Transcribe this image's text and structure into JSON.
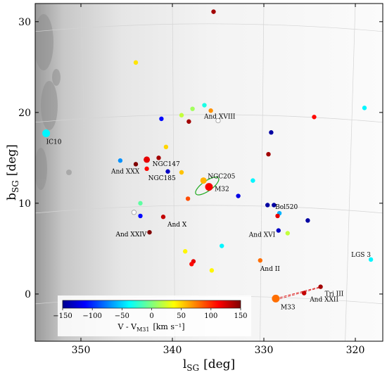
{
  "chart_data": {
    "type": "scatter",
    "xlabel": "l",
    "xlabel_sub": "SG",
    "xlabel_unit": "[deg]",
    "ylabel": "b",
    "ylabel_sub": "SG",
    "ylabel_unit": "[deg]",
    "xlim": [
      355.0,
      317.0
    ],
    "ylim": [
      -5.2,
      32.0
    ],
    "x_ticks": [
      350,
      340,
      330,
      320
    ],
    "y_ticks": [
      0,
      10,
      20,
      30
    ],
    "grid": true,
    "background": "sky-map greyscale (brighter toward left edge)",
    "colorbar": {
      "label": "V - V",
      "label_sub": "M31",
      "label_unit": "[km s⁻¹]",
      "ticks": [
        -150,
        -100,
        -50,
        0,
        50,
        100,
        150
      ],
      "tick_labels": [
        "−150",
        "−100",
        "−50",
        "0",
        "50",
        "100",
        "150"
      ],
      "range": [
        -150,
        150
      ],
      "colormap": "jet",
      "placement": "lower-left"
    },
    "points": [
      {
        "l": 353.8,
        "b": 17.7,
        "v": -40,
        "size": "large",
        "label": "IC10"
      },
      {
        "l": 335.5,
        "b": 31.1,
        "v": 140
      },
      {
        "l": 344.0,
        "b": 25.5,
        "v": 45
      },
      {
        "l": 336.5,
        "b": 20.8,
        "v": -30
      },
      {
        "l": 335.8,
        "b": 20.2,
        "v": 70
      },
      {
        "l": 337.8,
        "b": 20.4,
        "v": 10
      },
      {
        "l": 339.0,
        "b": 19.7,
        "v": 20
      },
      {
        "l": 341.2,
        "b": 19.3,
        "v": -110
      },
      {
        "l": 338.2,
        "b": 19.0,
        "v": 140
      },
      {
        "l": 335.0,
        "b": 19.1,
        "v": null,
        "label": "And XVIII"
      },
      {
        "l": 324.5,
        "b": 19.5,
        "v": 110
      },
      {
        "l": 319.0,
        "b": 20.5,
        "v": -40
      },
      {
        "l": 329.2,
        "b": 17.8,
        "v": -140
      },
      {
        "l": 329.5,
        "b": 15.4,
        "v": 140
      },
      {
        "l": 340.7,
        "b": 16.2,
        "v": 50
      },
      {
        "l": 341.5,
        "b": 15.0,
        "v": 140
      },
      {
        "l": 342.8,
        "b": 14.8,
        "v": 120,
        "size": "medium",
        "label": "NGC147"
      },
      {
        "l": 345.7,
        "b": 14.7,
        "v": -70
      },
      {
        "l": 344.0,
        "b": 14.3,
        "v": 150,
        "label": "And XXX"
      },
      {
        "l": 342.8,
        "b": 13.8,
        "v": 110,
        "label": "NGC185"
      },
      {
        "l": 340.5,
        "b": 13.5,
        "v": -130
      },
      {
        "l": 339.0,
        "b": 13.4,
        "v": 55
      },
      {
        "l": 336.6,
        "b": 12.5,
        "v": 60,
        "size": "medium",
        "label": "NGC205"
      },
      {
        "l": 336.0,
        "b": 11.8,
        "v": 115,
        "size": "large",
        "label": "M32"
      },
      {
        "l": 331.2,
        "b": 12.5,
        "v": -40
      },
      {
        "l": 332.8,
        "b": 10.8,
        "v": -120
      },
      {
        "l": 338.3,
        "b": 10.5,
        "v": 90
      },
      {
        "l": 343.5,
        "b": 10.0,
        "v": -10
      },
      {
        "l": 329.6,
        "b": 9.8,
        "v": -140
      },
      {
        "l": 328.9,
        "b": 9.8,
        "v": -140
      },
      {
        "l": 328.3,
        "b": 8.9,
        "v": -60,
        "label": "Bol520"
      },
      {
        "l": 328.5,
        "b": 8.6,
        "v": 120
      },
      {
        "l": 344.2,
        "b": 9.0,
        "v": null
      },
      {
        "l": 343.5,
        "b": 8.6,
        "v": -110
      },
      {
        "l": 341.0,
        "b": 8.5,
        "v": 130,
        "label": "And X"
      },
      {
        "l": 325.2,
        "b": 8.1,
        "v": -140
      },
      {
        "l": 328.4,
        "b": 7.0,
        "v": -130,
        "label": "And XVI"
      },
      {
        "l": 327.4,
        "b": 6.7,
        "v": 20
      },
      {
        "l": 342.5,
        "b": 6.8,
        "v": 150,
        "label": "And XXIV"
      },
      {
        "l": 334.6,
        "b": 5.3,
        "v": -40
      },
      {
        "l": 338.6,
        "b": 4.7,
        "v": 40
      },
      {
        "l": 330.4,
        "b": 3.7,
        "v": 80,
        "label": "And II"
      },
      {
        "l": 337.7,
        "b": 3.6,
        "v": 120
      },
      {
        "l": 337.9,
        "b": 3.3,
        "v": 110
      },
      {
        "l": 318.3,
        "b": 3.8,
        "v": -40,
        "label": "LGS 3"
      },
      {
        "l": 335.7,
        "b": 2.6,
        "v": 40
      },
      {
        "l": 323.8,
        "b": 0.8,
        "v": 140,
        "label": "Tri III"
      },
      {
        "l": 325.6,
        "b": 0.1,
        "v": 130,
        "label": "And XXII"
      },
      {
        "l": 328.7,
        "b": -0.5,
        "v": 80,
        "size": "large",
        "label": "M33"
      }
    ],
    "m31_ellipse": {
      "l": 336.2,
      "b": 11.9,
      "semi_l": 1.5,
      "semi_b": 0.55,
      "angle_deg": -35,
      "color": "#22aa22"
    },
    "m33_connector": {
      "from_l": 328.7,
      "from_b": -0.5,
      "to_l": 323.8,
      "to_b": 0.8,
      "color": "#dd2222",
      "style": "dashed"
    }
  }
}
